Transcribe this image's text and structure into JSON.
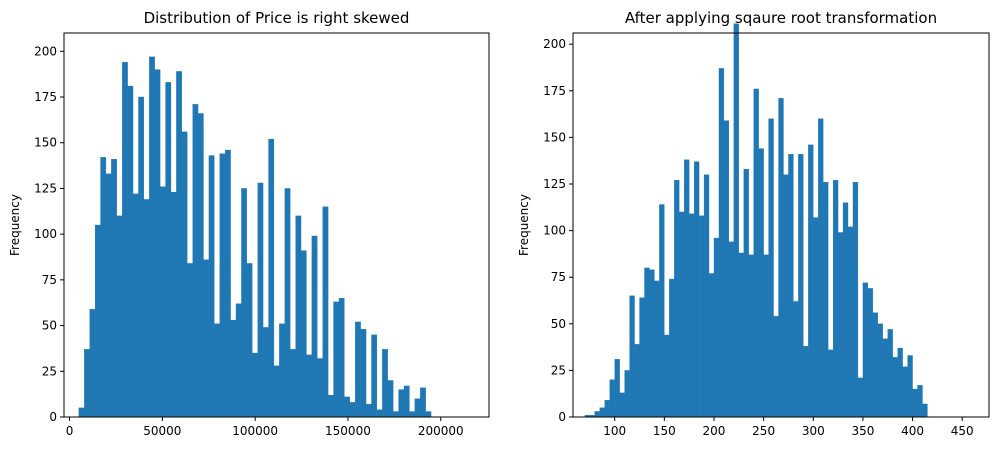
{
  "chart_data": [
    {
      "type": "bar",
      "title": "Distribution of Price is right skewed",
      "xlabel": "",
      "ylabel": "Frequency",
      "xlim": [
        -3000,
        226000
      ],
      "ylim": [
        0,
        210
      ],
      "xticks": [
        0,
        50000,
        100000,
        150000,
        200000
      ],
      "yticks": [
        0,
        25,
        50,
        75,
        100,
        125,
        150,
        175,
        200
      ],
      "bar_color": "#1f77b4",
      "bin_start": 5000,
      "bin_width": 2920,
      "values": [
        5,
        37,
        59,
        105,
        142,
        133,
        141,
        110,
        194,
        181,
        122,
        175,
        119,
        197,
        190,
        126,
        183,
        123,
        189,
        156,
        84,
        171,
        166,
        86,
        143,
        51,
        144,
        146,
        53,
        62,
        125,
        84,
        35,
        128,
        49,
        152,
        28,
        51,
        125,
        37,
        110,
        91,
        34,
        99,
        32,
        115,
        12,
        63,
        65,
        11,
        8,
        52,
        48,
        7,
        45,
        4,
        37,
        20,
        3,
        15,
        17,
        3,
        10,
        16,
        3
      ]
    },
    {
      "type": "bar",
      "title": "After applying sqaure root transformation",
      "xlabel": "",
      "ylabel": "Frequency",
      "xlim": [
        58,
        477
      ],
      "ylim": [
        0,
        206
      ],
      "xticks": [
        100,
        150,
        200,
        250,
        300,
        350,
        400,
        450
      ],
      "yticks": [
        0,
        25,
        50,
        75,
        100,
        125,
        150,
        175,
        200
      ],
      "bar_color": "#1f77b4",
      "bin_start": 70,
      "bin_width": 5.0,
      "values": [
        1,
        1,
        3,
        5,
        9,
        20,
        31,
        13,
        25,
        65,
        39,
        64,
        80,
        79,
        73,
        114,
        44,
        74,
        127,
        110,
        138,
        109,
        137,
        108,
        130,
        77,
        96,
        187,
        159,
        94,
        211,
        88,
        133,
        87,
        176,
        144,
        87,
        160,
        54,
        171,
        130,
        141,
        62,
        141,
        38,
        146,
        107,
        160,
        126,
        36,
        127,
        99,
        115,
        102,
        126,
        21,
        72,
        69,
        56,
        50,
        42,
        47,
        32,
        37,
        27,
        33,
        15,
        17,
        7
      ]
    }
  ]
}
